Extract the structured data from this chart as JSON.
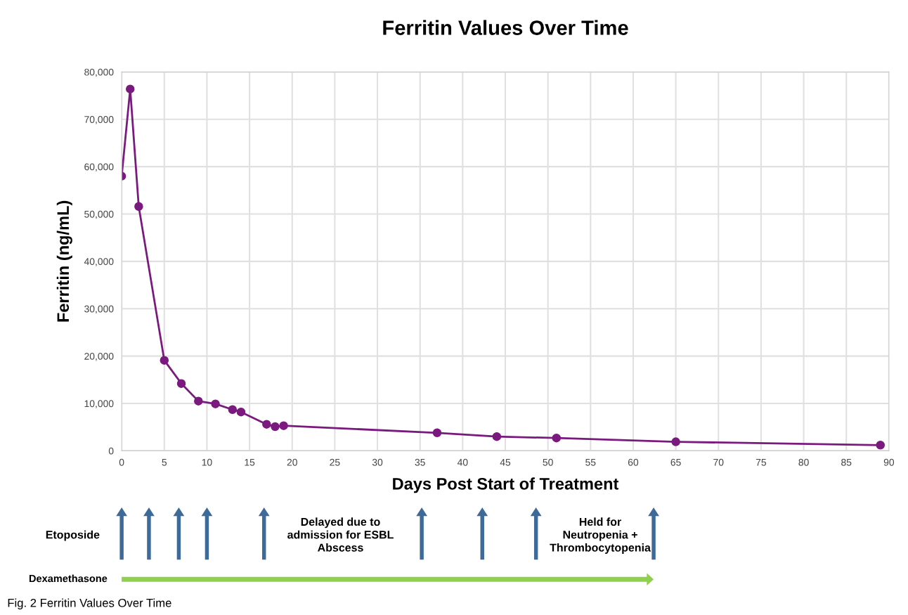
{
  "chart_data": {
    "type": "line",
    "title": "Ferritin Values Over Time",
    "xlabel": "Days Post Start of Treatment",
    "ylabel": "Ferritin (ng/mL)",
    "x": [
      0,
      1,
      2,
      5,
      7,
      9,
      11,
      13,
      14,
      17,
      18,
      19,
      37,
      44,
      51,
      65,
      89
    ],
    "series": [
      {
        "color": "#7b1a7e",
        "values": [
          58000,
          76400,
          51600,
          19100,
          14200,
          10500,
          9900,
          8700,
          8200,
          5600,
          5100,
          5300,
          3800,
          3000,
          2700,
          1900,
          1200
        ]
      }
    ],
    "xlim": [
      0,
      90
    ],
    "xticks": [
      0,
      5,
      10,
      15,
      20,
      25,
      30,
      35,
      40,
      45,
      50,
      55,
      60,
      65,
      70,
      75,
      80,
      85,
      90
    ],
    "ylim": [
      0,
      80000
    ],
    "yticks": [
      0,
      {
        "value": 10000,
        "label": "10,000"
      },
      {
        "value": 20000,
        "label": "20,000"
      },
      {
        "value": 30000,
        "label": "30,000"
      },
      {
        "value": 40000,
        "label": "40,000"
      },
      {
        "value": 50000,
        "label": "50,000"
      },
      {
        "value": 60000,
        "label": "60,000"
      },
      {
        "value": 70000,
        "label": "70,000"
      },
      {
        "value": 80000,
        "label": "80,000"
      }
    ],
    "grid": true,
    "marker": "circle",
    "line_style": "solid",
    "legend": false,
    "annotations": [
      "Etoposide",
      "Delayed due to\nadmission for ESBL\nAbscess",
      "Held for\nNeutropenia +\nThrombocytopenia",
      "Dexamethasone",
      "Fig. 2 Ferritin Values Over Time"
    ]
  }
}
